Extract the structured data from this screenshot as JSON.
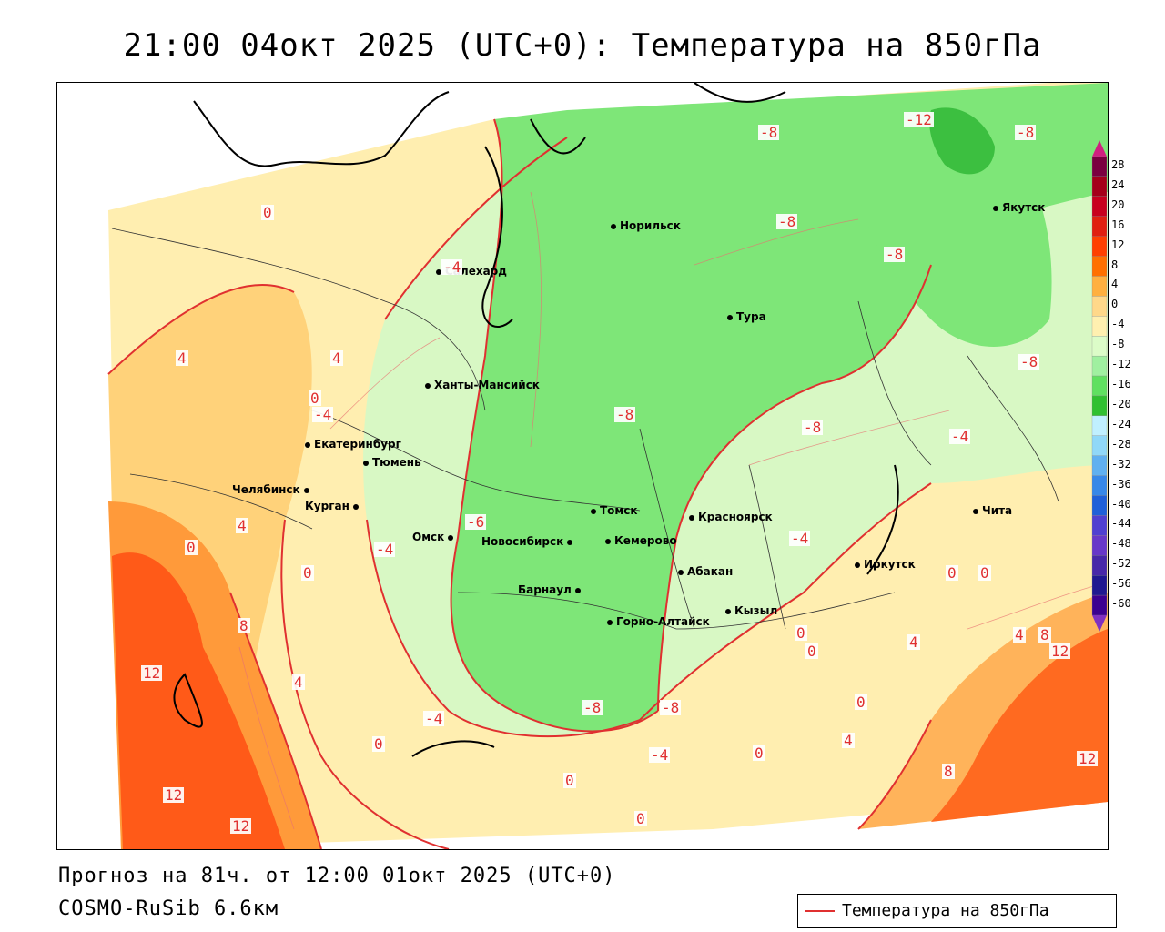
{
  "title": "21:00 04окт 2025 (UTC+0): Температура на 850гПа",
  "forecast_line": "Прогноз на 81ч. от 12:00 01окт 2025 (UTC+0)",
  "model": "COSMO-RuSib 6.6км",
  "legend": {
    "label": "Температура на 850гПа",
    "line_color": "#e03030"
  },
  "colorbar": {
    "ticks": [
      "28",
      "24",
      "20",
      "16",
      "12",
      "8",
      "4",
      "0",
      "-4",
      "-8",
      "-12",
      "-16",
      "-20",
      "-24",
      "-28",
      "-32",
      "-36",
      "-40",
      "-44",
      "-48",
      "-52",
      "-56",
      "-60"
    ],
    "colors": [
      "#7a0040",
      "#a4001a",
      "#c8001e",
      "#e02010",
      "#ff4000",
      "#ff7000",
      "#ffb040",
      "#ffd88a",
      "#fff0b0",
      "#dcfcc8",
      "#a0f0a0",
      "#60e060",
      "#30c030",
      "#c0f0ff",
      "#90d8f8",
      "#60b0f0",
      "#3888e8",
      "#2060d8",
      "#5040d0",
      "#6838c8",
      "#4828a8",
      "#201890",
      "#3c0090"
    ]
  },
  "cities": [
    {
      "name": "Норильск"
    },
    {
      "name": "Якутск"
    },
    {
      "name": "Салехард"
    },
    {
      "name": "Тура"
    },
    {
      "name": "Ханты-Мансийск"
    },
    {
      "name": "Екатеринбург"
    },
    {
      "name": "Тюмень"
    },
    {
      "name": "Челябинск"
    },
    {
      "name": "Курган"
    },
    {
      "name": "Омск"
    },
    {
      "name": "Новосибирск"
    },
    {
      "name": "Томск"
    },
    {
      "name": "Кемерово"
    },
    {
      "name": "Красноярск"
    },
    {
      "name": "Абакан"
    },
    {
      "name": "Барнаул"
    },
    {
      "name": "Горно-Алтайск"
    },
    {
      "name": "Кызыл"
    },
    {
      "name": "Иркутск"
    },
    {
      "name": "Чита"
    }
  ],
  "isotherm_labels": [
    "-8",
    "-12",
    "-8",
    "-8",
    "-8",
    "-8",
    "0",
    "-4",
    "4",
    "4",
    "0",
    "-4",
    "-8",
    "-8",
    "-4",
    "-4",
    "-4",
    "0",
    "4",
    "-6",
    "0",
    "8",
    "12",
    "4",
    "-4",
    "0",
    "12",
    "12",
    "-8",
    "-8",
    "-4",
    "0",
    "0",
    "0",
    "0",
    "4",
    "4",
    "8",
    "12",
    "12",
    "4",
    "0",
    "8",
    "0",
    "0",
    "0"
  ]
}
